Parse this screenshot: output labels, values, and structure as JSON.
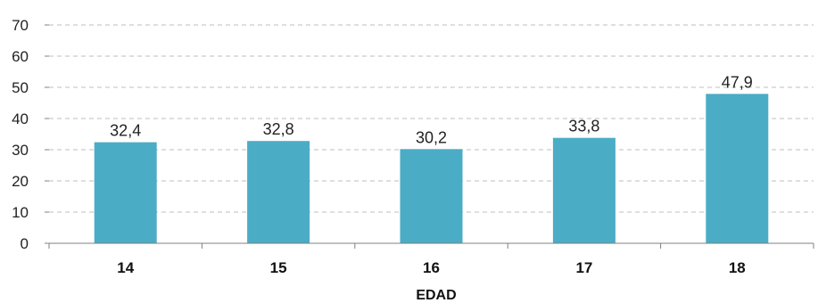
{
  "chart_data": {
    "type": "bar",
    "categories": [
      "14",
      "15",
      "16",
      "17",
      "18"
    ],
    "values": [
      32.4,
      32.8,
      30.2,
      33.8,
      47.9
    ],
    "data_labels": [
      "32,4",
      "32,8",
      "30,2",
      "33,8",
      "47,9"
    ],
    "xlabel": "EDAD",
    "ylabel": "",
    "ylim": [
      0,
      70
    ],
    "yticks": [
      0,
      10,
      20,
      30,
      40,
      50,
      60,
      70
    ],
    "grid": "dashed horizontal",
    "legend": "none",
    "colors": {
      "bar": "#4bacc6",
      "grid": "#bfbfbf",
      "axis": "#808080"
    }
  }
}
